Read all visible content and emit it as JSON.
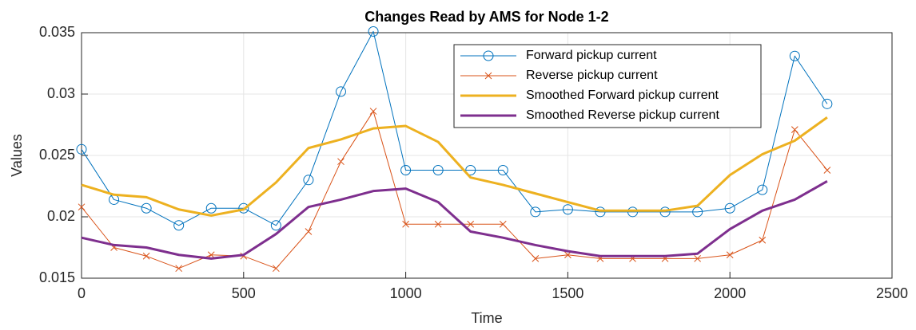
{
  "chart_data": {
    "type": "line",
    "title": "Changes Read by AMS for Node 1-2",
    "x_label": "Time",
    "y_label": "Values",
    "x": [
      0,
      100,
      200,
      300,
      400,
      500,
      600,
      700,
      800,
      900,
      1000,
      1100,
      1200,
      1300,
      1400,
      1500,
      1600,
      1700,
      1800,
      1900,
      2000,
      2100,
      2200,
      2300
    ],
    "series": [
      {
        "name": "Forward pickup current",
        "color": "#0072bd",
        "marker": "o",
        "linewidth": 1,
        "values": [
          0.0255,
          0.0214,
          0.0207,
          0.0193,
          0.0207,
          0.0207,
          0.0193,
          0.023,
          0.0302,
          0.0351,
          0.0238,
          0.0238,
          0.0238,
          0.0238,
          0.0204,
          0.0206,
          0.0204,
          0.0204,
          0.0204,
          0.0204,
          0.0207,
          0.0222,
          0.0331,
          0.0292
        ]
      },
      {
        "name": "Reverse pickup current",
        "color": "#d95319",
        "marker": "x",
        "linewidth": 1,
        "values": [
          0.0208,
          0.0175,
          0.0168,
          0.0158,
          0.0169,
          0.0168,
          0.0158,
          0.0188,
          0.0245,
          0.0286,
          0.0194,
          0.0194,
          0.0194,
          0.0194,
          0.0166,
          0.0169,
          0.0166,
          0.0166,
          0.0166,
          0.0166,
          0.0169,
          0.0181,
          0.0271,
          0.0238
        ]
      },
      {
        "name": "Smoothed Forward pickup current",
        "color": "#edb120",
        "marker": null,
        "linewidth": 3,
        "values": [
          0.0226,
          0.0218,
          0.0216,
          0.0206,
          0.0201,
          0.0206,
          0.0228,
          0.0256,
          0.0263,
          0.0272,
          0.0274,
          0.0261,
          0.0232,
          0.0226,
          0.0219,
          0.0212,
          0.0205,
          0.0205,
          0.0205,
          0.0209,
          0.0234,
          0.0251,
          0.0262,
          0.0281
        ]
      },
      {
        "name": "Smoothed Reverse pickup current",
        "color": "#7e2f8e",
        "marker": null,
        "linewidth": 3,
        "values": [
          0.0183,
          0.0177,
          0.0175,
          0.0169,
          0.0166,
          0.0169,
          0.0186,
          0.0208,
          0.0214,
          0.0221,
          0.0223,
          0.0212,
          0.0188,
          0.0183,
          0.0177,
          0.0172,
          0.0168,
          0.0168,
          0.0168,
          0.017,
          0.019,
          0.0205,
          0.0214,
          0.0229
        ]
      }
    ],
    "xlim": [
      0,
      2500
    ],
    "xticks": [
      0,
      500,
      1000,
      1500,
      2000,
      2500
    ],
    "ylim": [
      0.015,
      0.035
    ],
    "yticks": [
      0.015,
      0.02,
      0.025,
      0.03,
      0.035
    ],
    "grid": true,
    "legend": "northeast"
  }
}
